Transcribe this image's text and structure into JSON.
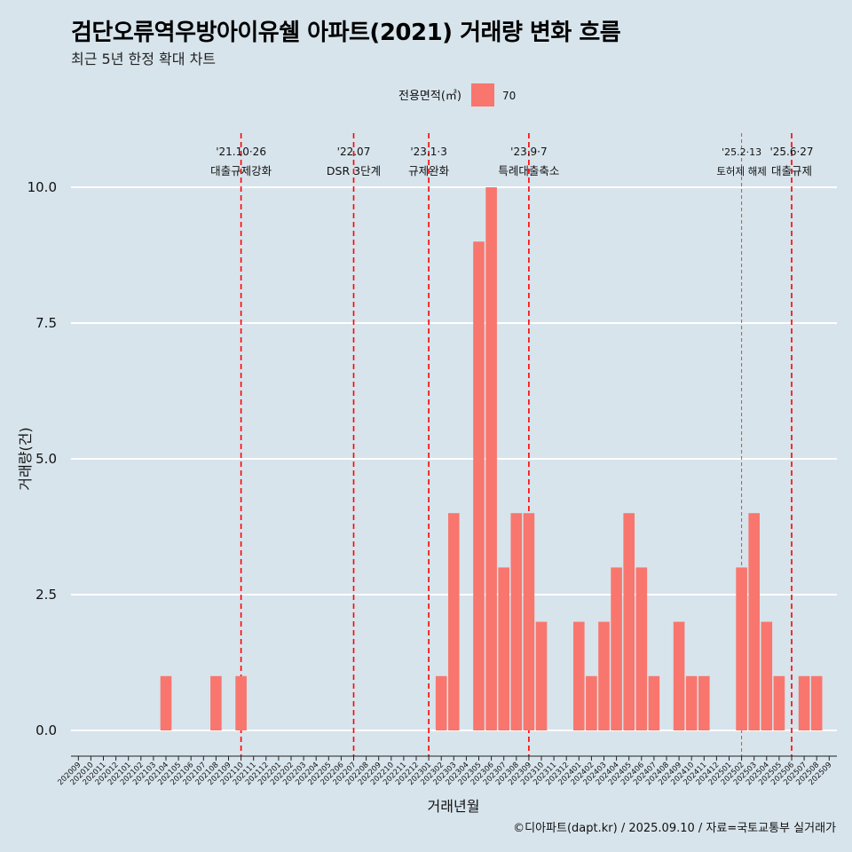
{
  "title": "검단오류역우방아이유쉘 아파트(2021) 거래량 변화 흐름",
  "subtitle": "최근 5년 한정 확대 차트",
  "caption": "©디아파트(dapt.kr) / 2025.09.10 / 자료=국토교통부 실거래가",
  "colors": {
    "background": "#d7e4ec",
    "bar": "#f8766d",
    "grid": "#ffffff",
    "event_line": "#ff0000"
  },
  "chart_data": {
    "type": "bar",
    "xlabel": "거래년월",
    "ylabel": "거래량(건)",
    "ylim": [
      -0.45,
      11.2
    ],
    "yticks": [
      0.0,
      2.5,
      5.0,
      7.5,
      10.0
    ],
    "ytick_labels": [
      "0.0",
      "2.5",
      "5.0",
      "7.5",
      "10.0"
    ],
    "legend": {
      "title": "전용면적(㎡)",
      "position": "top",
      "entries": [
        "70"
      ]
    },
    "grid": true,
    "categories": [
      "202009",
      "202010",
      "202011",
      "202012",
      "202101",
      "202102",
      "202103",
      "202104",
      "202105",
      "202106",
      "202107",
      "202108",
      "202109",
      "202110",
      "202111",
      "202112",
      "202201",
      "202202",
      "202203",
      "202204",
      "202205",
      "202206",
      "202207",
      "202208",
      "202209",
      "202210",
      "202211",
      "202212",
      "202301",
      "202302",
      "202303",
      "202304",
      "202305",
      "202306",
      "202307",
      "202308",
      "202309",
      "202310",
      "202311",
      "202312",
      "202401",
      "202402",
      "202403",
      "202404",
      "202405",
      "202406",
      "202407",
      "202408",
      "202409",
      "202410",
      "202411",
      "202412",
      "202501",
      "202502",
      "202503",
      "202504",
      "202505",
      "202506",
      "202507",
      "202508",
      "202509"
    ],
    "series": [
      {
        "name": "70",
        "values": [
          0,
          0,
          0,
          0,
          0,
          0,
          0,
          1,
          0,
          0,
          0,
          1,
          0,
          1,
          0,
          0,
          0,
          0,
          0,
          0,
          0,
          0,
          0,
          0,
          0,
          0,
          0,
          0,
          0,
          1,
          4,
          0,
          9,
          10,
          3,
          4,
          4,
          2,
          0,
          0,
          2,
          1,
          2,
          3,
          4,
          3,
          1,
          0,
          2,
          1,
          1,
          0,
          0,
          3,
          4,
          2,
          1,
          0,
          1,
          1,
          0
        ]
      }
    ],
    "events": [
      {
        "date": "202110",
        "line1": "'21.10·26",
        "line2": "대출규제강화",
        "style": "dashed"
      },
      {
        "date": "202207",
        "line1": "'22.07",
        "line2": "DSR 3단계",
        "style": "dashed"
      },
      {
        "date": "202301",
        "line1": "'23.1·3",
        "line2": "규제완화",
        "style": "dashed"
      },
      {
        "date": "202309",
        "line1": "'23.9·7",
        "line2": "특례대출축소",
        "style": "dashed"
      },
      {
        "date": "202502",
        "line1": "'25.2·13",
        "line2": "토허제 해제",
        "style": "thin-dashed"
      },
      {
        "date": "202506",
        "line1": "'25.6·27",
        "line2": "대출규제",
        "style": "dashed"
      }
    ]
  }
}
